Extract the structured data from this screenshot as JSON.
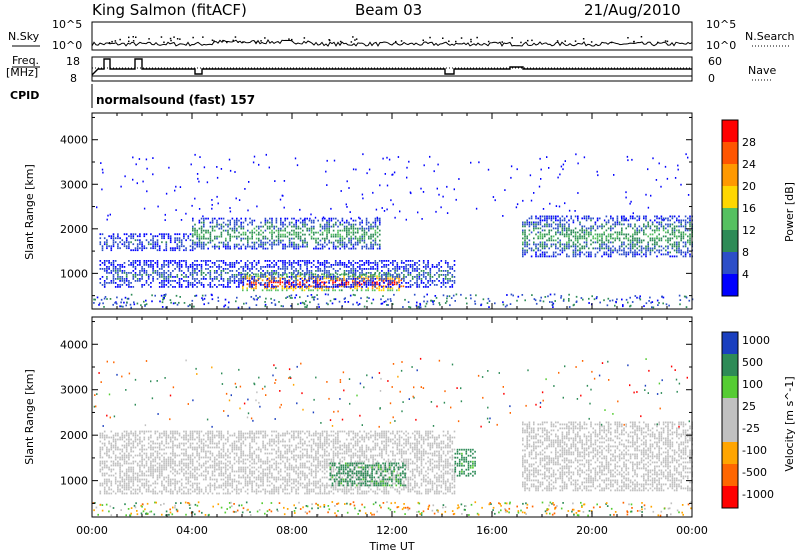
{
  "header": {
    "station": "King Salmon (fitACF)",
    "beam": "Beam 03",
    "date": "21/Aug/2010"
  },
  "top_panel": {
    "left_label": "N.Sky",
    "right_label": "N.Search",
    "left_ticks": [
      "10^5",
      "10^0"
    ],
    "right_ticks": [
      "10^5",
      "10^0"
    ]
  },
  "freq_panel": {
    "left_label_1": "Freq.",
    "left_label_2": "[MHz]",
    "left_ticks": [
      "18",
      "8"
    ],
    "right_label": "Nave",
    "right_ticks": [
      "60",
      "0"
    ]
  },
  "cpid": {
    "label": "CPID",
    "value": "normalsound (fast) 157"
  },
  "colors": {
    "power_scale": [
      "#0000ff",
      "#2d4fc8",
      "#2e8b57",
      "#55c060",
      "#ffd700",
      "#ff9900",
      "#ff5500",
      "#ff0000"
    ],
    "velocity_scale": [
      "#ff0000",
      "#ff6600",
      "#ffa500",
      "#c0c0c0",
      "#c0c0c0",
      "#55cc33",
      "#2e8b57",
      "#1a3fbf"
    ]
  },
  "chart_data": [
    {
      "type": "heatmap",
      "title": "",
      "xlabel": "Time UT",
      "ylabel": "Slant Range [km]",
      "xlim": [
        "00:00",
        "24:00"
      ],
      "ylim": [
        200,
        4600
      ],
      "x_ticks": [
        "00:00",
        "04:00",
        "08:00",
        "12:00",
        "16:00",
        "20:00",
        "00:00"
      ],
      "y_ticks": [
        "1000",
        "2000",
        "3000",
        "4000"
      ],
      "colorbar": {
        "label": "Power [dB]",
        "ticks": [
          "4",
          "8",
          "12",
          "16",
          "20",
          "24",
          "28"
        ],
        "range": [
          0,
          32
        ]
      },
      "features": [
        {
          "start_ut": 0.3,
          "end_ut": 4.0,
          "range_km": [
            1500,
            1900
          ],
          "power_db": 6
        },
        {
          "start_ut": 4.0,
          "end_ut": 11.5,
          "range_km": [
            1550,
            2250
          ],
          "power_db": 10
        },
        {
          "start_ut": 6.0,
          "end_ut": 12.5,
          "range_km": [
            600,
            1000
          ],
          "power_db": 26
        },
        {
          "start_ut": 0.3,
          "end_ut": 14.5,
          "range_km": [
            700,
            1300
          ],
          "power_db": 6
        },
        {
          "start_ut": 17.2,
          "end_ut": 24.0,
          "range_km": [
            1400,
            2300
          ],
          "power_db": 10
        }
      ]
    },
    {
      "type": "heatmap",
      "title": "",
      "xlabel": "Time UT",
      "ylabel": "Slant Range [km]",
      "xlim": [
        "00:00",
        "24:00"
      ],
      "ylim": [
        200,
        4600
      ],
      "x_ticks": [
        "00:00",
        "04:00",
        "08:00",
        "12:00",
        "16:00",
        "20:00",
        "00:00"
      ],
      "y_ticks": [
        "1000",
        "2000",
        "3000",
        "4000"
      ],
      "colorbar": {
        "label": "Velocity [m s^-1]",
        "ticks": [
          "1000",
          "500",
          "100",
          "25",
          "-25",
          "-100",
          "-500",
          "-1000"
        ]
      },
      "features": [
        {
          "start_ut": 0.3,
          "end_ut": 14.5,
          "range_km": [
            700,
            2100
          ],
          "velocity_ms": 0
        },
        {
          "start_ut": 9.5,
          "end_ut": 12.5,
          "range_km": [
            900,
            1400
          ],
          "velocity_ms": 150
        },
        {
          "start_ut": 14.5,
          "end_ut": 15.3,
          "range_km": [
            1100,
            1700
          ],
          "velocity_ms": 150
        },
        {
          "start_ut": 17.2,
          "end_ut": 24.0,
          "range_km": [
            800,
            2300
          ],
          "velocity_ms": 0
        }
      ]
    }
  ]
}
